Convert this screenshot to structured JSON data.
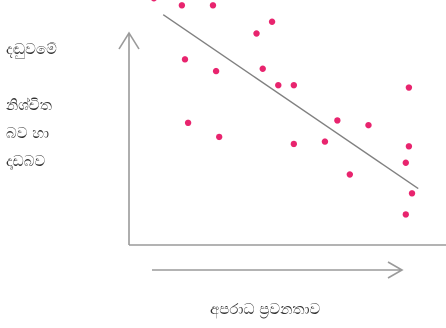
{
  "chart_data": {
    "type": "scatter",
    "title": "",
    "ylabel_lines": [
      "දඬුවමේ",
      "නිශ්චිත",
      "බව හා",
      "දෘඩබව"
    ],
    "xlabel": "අපරාධ ප්‍රවනතාව",
    "xlim": [
      0,
      100
    ],
    "ylim": [
      0,
      100
    ],
    "grid": false,
    "marker_color": "#e8246e",
    "axis_color": "#9a9a9a",
    "points": [
      {
        "x": 8,
        "y": 105
      },
      {
        "x": 17,
        "y": 102
      },
      {
        "x": 27,
        "y": 102
      },
      {
        "x": 41,
        "y": 90
      },
      {
        "x": 46,
        "y": 95
      },
      {
        "x": 18,
        "y": 79
      },
      {
        "x": 28,
        "y": 74
      },
      {
        "x": 43,
        "y": 75
      },
      {
        "x": 48,
        "y": 68
      },
      {
        "x": 53,
        "y": 68
      },
      {
        "x": 19,
        "y": 52
      },
      {
        "x": 29,
        "y": 46
      },
      {
        "x": 53,
        "y": 43
      },
      {
        "x": 63,
        "y": 44
      },
      {
        "x": 67,
        "y": 53
      },
      {
        "x": 77,
        "y": 51
      },
      {
        "x": 71,
        "y": 30
      },
      {
        "x": 90,
        "y": 67
      },
      {
        "x": 90,
        "y": 42
      },
      {
        "x": 89,
        "y": 35
      },
      {
        "x": 91,
        "y": 22
      },
      {
        "x": 103,
        "y": 26
      },
      {
        "x": 89,
        "y": 13
      }
    ],
    "trend_line": {
      "x1": 11,
      "y1": 98,
      "x2": 93,
      "y2": 24
    }
  }
}
